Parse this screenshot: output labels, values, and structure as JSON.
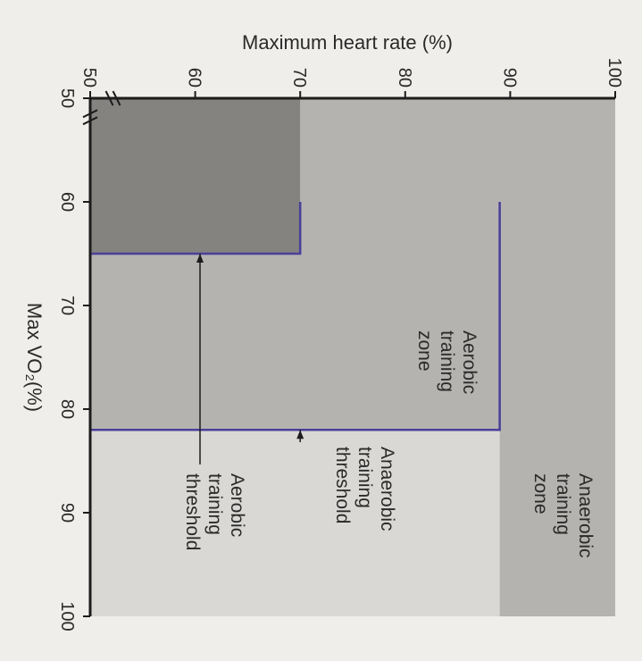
{
  "chart_data": {
    "type": "area",
    "title": "",
    "xlabel": "Maximum heart rate (%)",
    "ylabel": "Max VO₂(%)",
    "xlim": [
      50,
      100
    ],
    "ylim": [
      50,
      100
    ],
    "x_ticks": [
      "50",
      "60",
      "70",
      "80",
      "90",
      "100"
    ],
    "y_ticks": [
      "50",
      "60",
      "70",
      "80",
      "90",
      "100"
    ],
    "zones": [
      {
        "name": "Anaerobic training zone",
        "lines": [
          "Anaerobic",
          "training",
          "zone"
        ],
        "hr_range": [
          70,
          100
        ],
        "vo2_range": [
          65,
          100
        ],
        "color": "#b5b3b0"
      },
      {
        "name": "Aerobic training zone",
        "lines": [
          "Aerobic",
          "training",
          "zone"
        ],
        "hr_range": [
          50,
          70
        ],
        "vo2_range": [
          50,
          65
        ],
        "color": "#858380"
      },
      {
        "name": "Anaerobic training threshold",
        "lines": [
          "Anaerobic",
          "training",
          "threshold"
        ],
        "color": "#d9d8d4"
      },
      {
        "name": "Aerobic training threshold",
        "lines": [
          "Aerobic",
          "training",
          "threshold"
        ]
      }
    ],
    "outlined_region": {
      "hr_range": [
        70,
        89
      ],
      "vo2_range": [
        60,
        82
      ],
      "color": "#4a3f99"
    }
  }
}
